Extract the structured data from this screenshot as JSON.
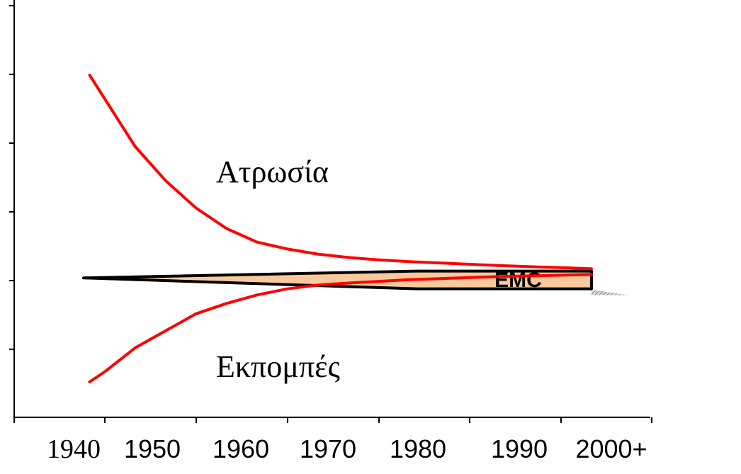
{
  "chart_data": {
    "type": "line",
    "x_tick_labels": [
      "1940",
      "1950",
      "1960",
      "1970",
      "1980",
      "1990",
      "2000+"
    ],
    "y_tick_count": 6,
    "series": [
      {
        "name": "Ατρωσία",
        "color": "#ff0000",
        "x": [
          1938,
          1940,
          1944,
          1948,
          1952,
          1956,
          1960,
          1964,
          1968,
          1972,
          1976,
          1980,
          1984,
          1988,
          1992,
          1996,
          2000,
          2004
        ],
        "y": [
          100,
          93,
          79,
          69,
          61,
          55,
          51,
          49,
          47.5,
          46.5,
          45.8,
          45.3,
          44.9,
          44.5,
          44.1,
          43.8,
          43.5,
          43.2
        ]
      },
      {
        "name": "Εκπομπές",
        "color": "#ff0000",
        "x": [
          1938,
          1940,
          1944,
          1948,
          1952,
          1956,
          1960,
          1964,
          1968,
          1972,
          1976,
          1980,
          1984,
          1988,
          1992,
          1996,
          2000,
          2004
        ],
        "y": [
          10,
          13,
          20,
          25,
          30,
          33,
          35.5,
          37.3,
          38.4,
          39,
          39.5,
          40,
          40.3,
          40.6,
          40.9,
          41.1,
          41.3,
          41.5
        ]
      }
    ],
    "annotations": {
      "upper": "Ατρωσία",
      "lower": "Εκπομπές",
      "band_label": "EMC"
    },
    "emc_band": {
      "fill": "#f9c99c",
      "shadow": "#a8a8a8",
      "start_x": 1940,
      "taper_end_x": 1981,
      "end_x": 2004,
      "center_y": 40.5,
      "top_end_y": 42.5,
      "bottom_end_y": 37.3
    }
  }
}
